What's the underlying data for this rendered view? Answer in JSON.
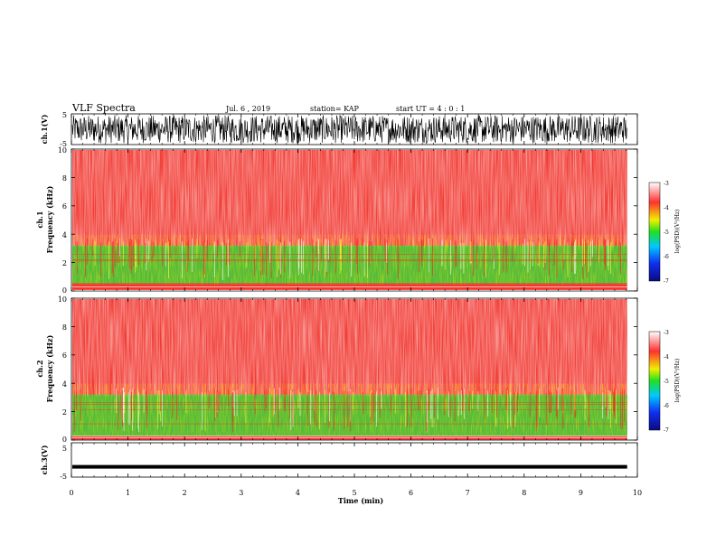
{
  "chart_data": {
    "type": "heatmap",
    "header": {
      "title": "VLF Spectra",
      "date": "Jul. 6 , 2019",
      "station": "station= KAP",
      "start": "start UT = 4 : 0 : 1"
    },
    "x_axis": {
      "label": "Time (min)",
      "range": [
        0,
        10
      ],
      "ticks": [
        "0",
        "1",
        "2",
        "3",
        "4",
        "5",
        "6",
        "7",
        "8",
        "9",
        "10"
      ],
      "data_end": 9.82
    },
    "panels": [
      {
        "id": "waveform1",
        "type": "line",
        "ylabel": "ch.1(V)",
        "ylim": [
          -5,
          5
        ],
        "ticks": [
          "5",
          "-5"
        ],
        "behavior": "broadband noise, near full scale"
      },
      {
        "id": "spectrogram1",
        "type": "heatmap",
        "ylabel_line1": "ch.1",
        "ylabel_line2": "Frequency (kHz)",
        "ylim": [
          0,
          10
        ],
        "ticks": [
          "0",
          "2",
          "4",
          "6",
          "8",
          "10"
        ],
        "dominant_log_psd": -3.5,
        "low_band_kHz": [
          0.5,
          3.2
        ],
        "low_band_log_psd": -4.8
      },
      {
        "id": "spectrogram2",
        "type": "heatmap",
        "ylabel_line1": "ch.2",
        "ylabel_line2": "Frequency (kHz)",
        "ylim": [
          0,
          10
        ],
        "ticks": [
          "0",
          "2",
          "4",
          "6",
          "8",
          "10"
        ],
        "dominant_log_psd": -3.5,
        "low_band_kHz": [
          0.3,
          3.2
        ],
        "low_band_log_psd": -4.8
      },
      {
        "id": "waveform2",
        "type": "line",
        "ylabel": "ch.3(V)",
        "ylim": [
          -5,
          5
        ],
        "ticks": [
          "5",
          "-5"
        ],
        "constant_value": -2.0
      }
    ],
    "colorbar": {
      "label": "log(PSD)(V²/Hz)",
      "range": [
        -7,
        -3
      ],
      "ticks": [
        "-3",
        "-4",
        "-5",
        "-6",
        "-7"
      ],
      "colormap": [
        "#0a0a80",
        "#1030f0",
        "#00c8ff",
        "#20e020",
        "#f0f000",
        "#ff3030",
        "#ffffff"
      ]
    }
  }
}
